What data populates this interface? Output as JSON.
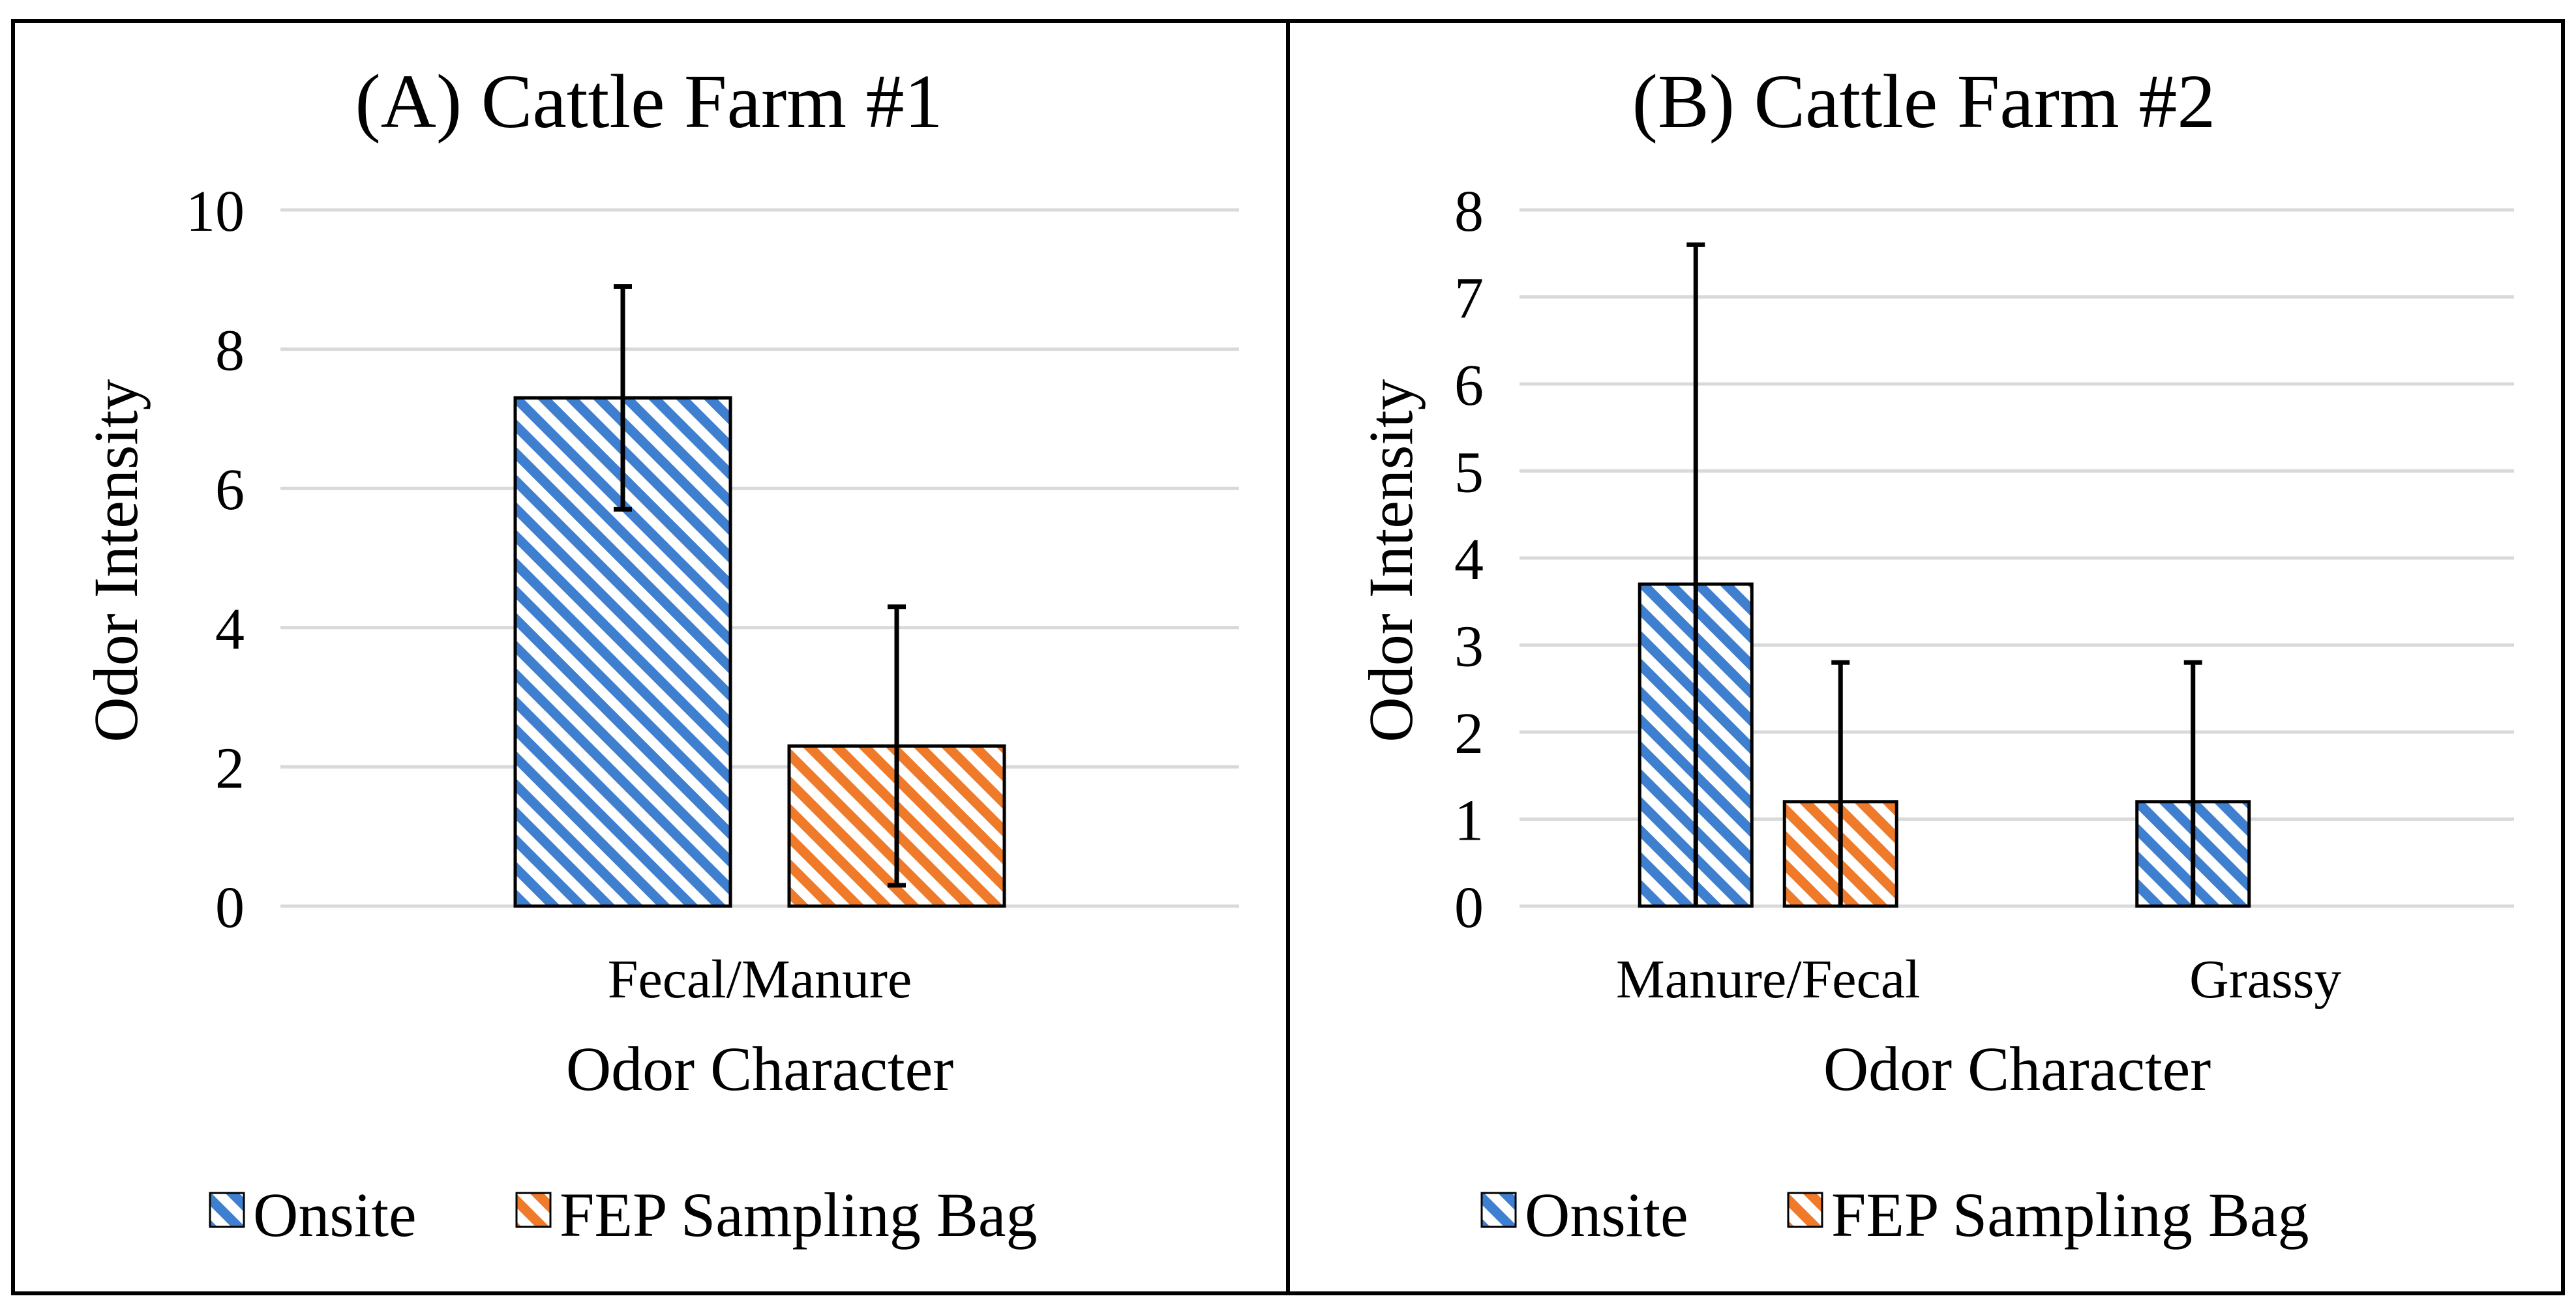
{
  "colors": {
    "onsite": "#3f7fd0",
    "bag": "#ef7a2a",
    "grid": "#d9d9d9",
    "frame": "#000000"
  },
  "legend": {
    "onsite_label": "Onsite",
    "bag_label": "FEP Sampling Bag"
  },
  "chart_data": [
    {
      "type": "bar",
      "title": "(A) Cattle Farm #1",
      "xlabel": "Odor Character",
      "ylabel": "Odor Intensity",
      "ylim": [
        0,
        10
      ],
      "yticks": [
        0,
        2,
        4,
        6,
        8,
        10
      ],
      "categories": [
        "Fecal/Manure"
      ],
      "grid": true,
      "legend_position": "bottom",
      "series": [
        {
          "name": "Onsite",
          "values": [
            7.3
          ],
          "error": [
            1.6
          ]
        },
        {
          "name": "FEP Sampling Bag",
          "values": [
            2.3
          ],
          "error": [
            2.0
          ]
        }
      ]
    },
    {
      "type": "bar",
      "title": "(B) Cattle Farm #2",
      "xlabel": "Odor Character",
      "ylabel": "Odor Intensity",
      "ylim": [
        0,
        8
      ],
      "yticks": [
        0,
        1,
        2,
        3,
        4,
        5,
        6,
        7,
        8
      ],
      "categories": [
        "Manure/Fecal",
        "Grassy"
      ],
      "grid": true,
      "legend_position": "bottom",
      "series": [
        {
          "name": "Onsite",
          "values": [
            3.7,
            1.2
          ],
          "error": [
            3.9,
            1.6
          ]
        },
        {
          "name": "FEP Sampling Bag",
          "values": [
            1.2,
            null
          ],
          "error": [
            1.6,
            null
          ]
        }
      ]
    }
  ]
}
